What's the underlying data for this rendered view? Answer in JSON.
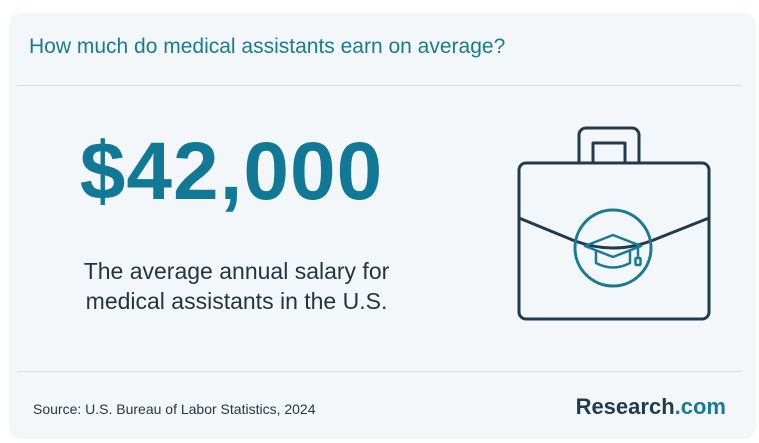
{
  "header": {
    "title": "How much do medical assistants earn on average?"
  },
  "stat": {
    "value": "$42,000",
    "description": "The average annual salary for medical assistants in the U.S."
  },
  "footer": {
    "source": "Source: U.S. Bureau of Labor Statistics, 2024",
    "logo_brand": "Research",
    "logo_tld": ".com"
  },
  "icons": {
    "illustration": "briefcase-graduation-cap-icon"
  },
  "colors": {
    "accent": "#117896",
    "dark": "#1f3540",
    "card_background": "#f4f7f9"
  }
}
